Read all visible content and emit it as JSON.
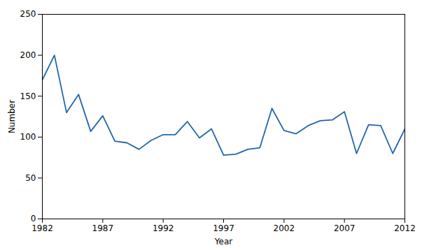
{
  "chart_data": {
    "type": "line",
    "x": [
      1982,
      1983,
      1984,
      1985,
      1986,
      1987,
      1988,
      1989,
      1990,
      1991,
      1992,
      1993,
      1994,
      1995,
      1996,
      1997,
      1998,
      1999,
      2000,
      2001,
      2002,
      2003,
      2004,
      2005,
      2006,
      2007,
      2008,
      2009,
      2010,
      2011,
      2012
    ],
    "values": [
      170,
      200,
      130,
      152,
      107,
      126,
      95,
      93,
      85,
      96,
      103,
      103,
      119,
      99,
      110,
      78,
      79,
      85,
      87,
      135,
      108,
      104,
      114,
      120,
      121,
      131,
      80,
      115,
      114,
      80,
      110
    ],
    "color": "#2166ac",
    "xlabel": "Year",
    "ylabel": "Number",
    "xlim": [
      1982,
      2012
    ],
    "ylim": [
      0,
      250
    ],
    "xticks": [
      1982,
      1987,
      1992,
      1997,
      2002,
      2007,
      2012
    ],
    "yticks": [
      0,
      50,
      100,
      150,
      200,
      250
    ],
    "grid": false
  }
}
